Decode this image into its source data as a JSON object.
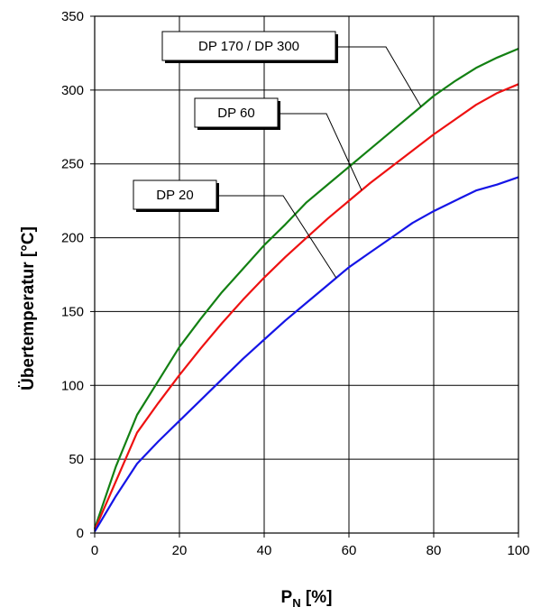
{
  "chart_data": {
    "type": "line",
    "title": "",
    "xlabel": "P",
    "xlabel_sub": "N",
    "xlabel_suffix": " [%]",
    "ylabel": "Übertemperatur [°C]",
    "xlim": [
      0,
      100
    ],
    "ylim": [
      0,
      350
    ],
    "x_ticks": [
      0,
      20,
      40,
      60,
      80,
      100
    ],
    "y_ticks": [
      0,
      50,
      100,
      150,
      200,
      250,
      300,
      350
    ],
    "grid": true,
    "legend": "callouts",
    "x": [
      0,
      5,
      10,
      15,
      20,
      25,
      30,
      35,
      40,
      45,
      50,
      55,
      60,
      65,
      70,
      75,
      80,
      85,
      90,
      95,
      100
    ],
    "series": [
      {
        "name": "DP 170 / DP 300",
        "color": "#138013",
        "values": [
          3,
          45,
          80,
          103,
          126,
          145,
          163,
          179,
          195,
          209,
          224,
          236,
          248,
          260,
          272,
          284,
          296,
          306,
          315,
          322,
          328
        ]
      },
      {
        "name": "DP 60",
        "color": "#ee1111",
        "values": [
          2,
          35,
          68,
          88,
          107,
          125,
          142,
          158,
          173,
          187,
          200,
          213,
          225,
          237,
          248,
          259,
          270,
          280,
          290,
          298,
          304
        ]
      },
      {
        "name": "DP 20",
        "color": "#1515e6",
        "values": [
          1,
          25,
          47,
          62,
          76,
          90,
          104,
          118,
          131,
          144,
          156,
          168,
          180,
          190,
          200,
          210,
          218,
          225,
          232,
          236,
          241
        ]
      }
    ]
  }
}
